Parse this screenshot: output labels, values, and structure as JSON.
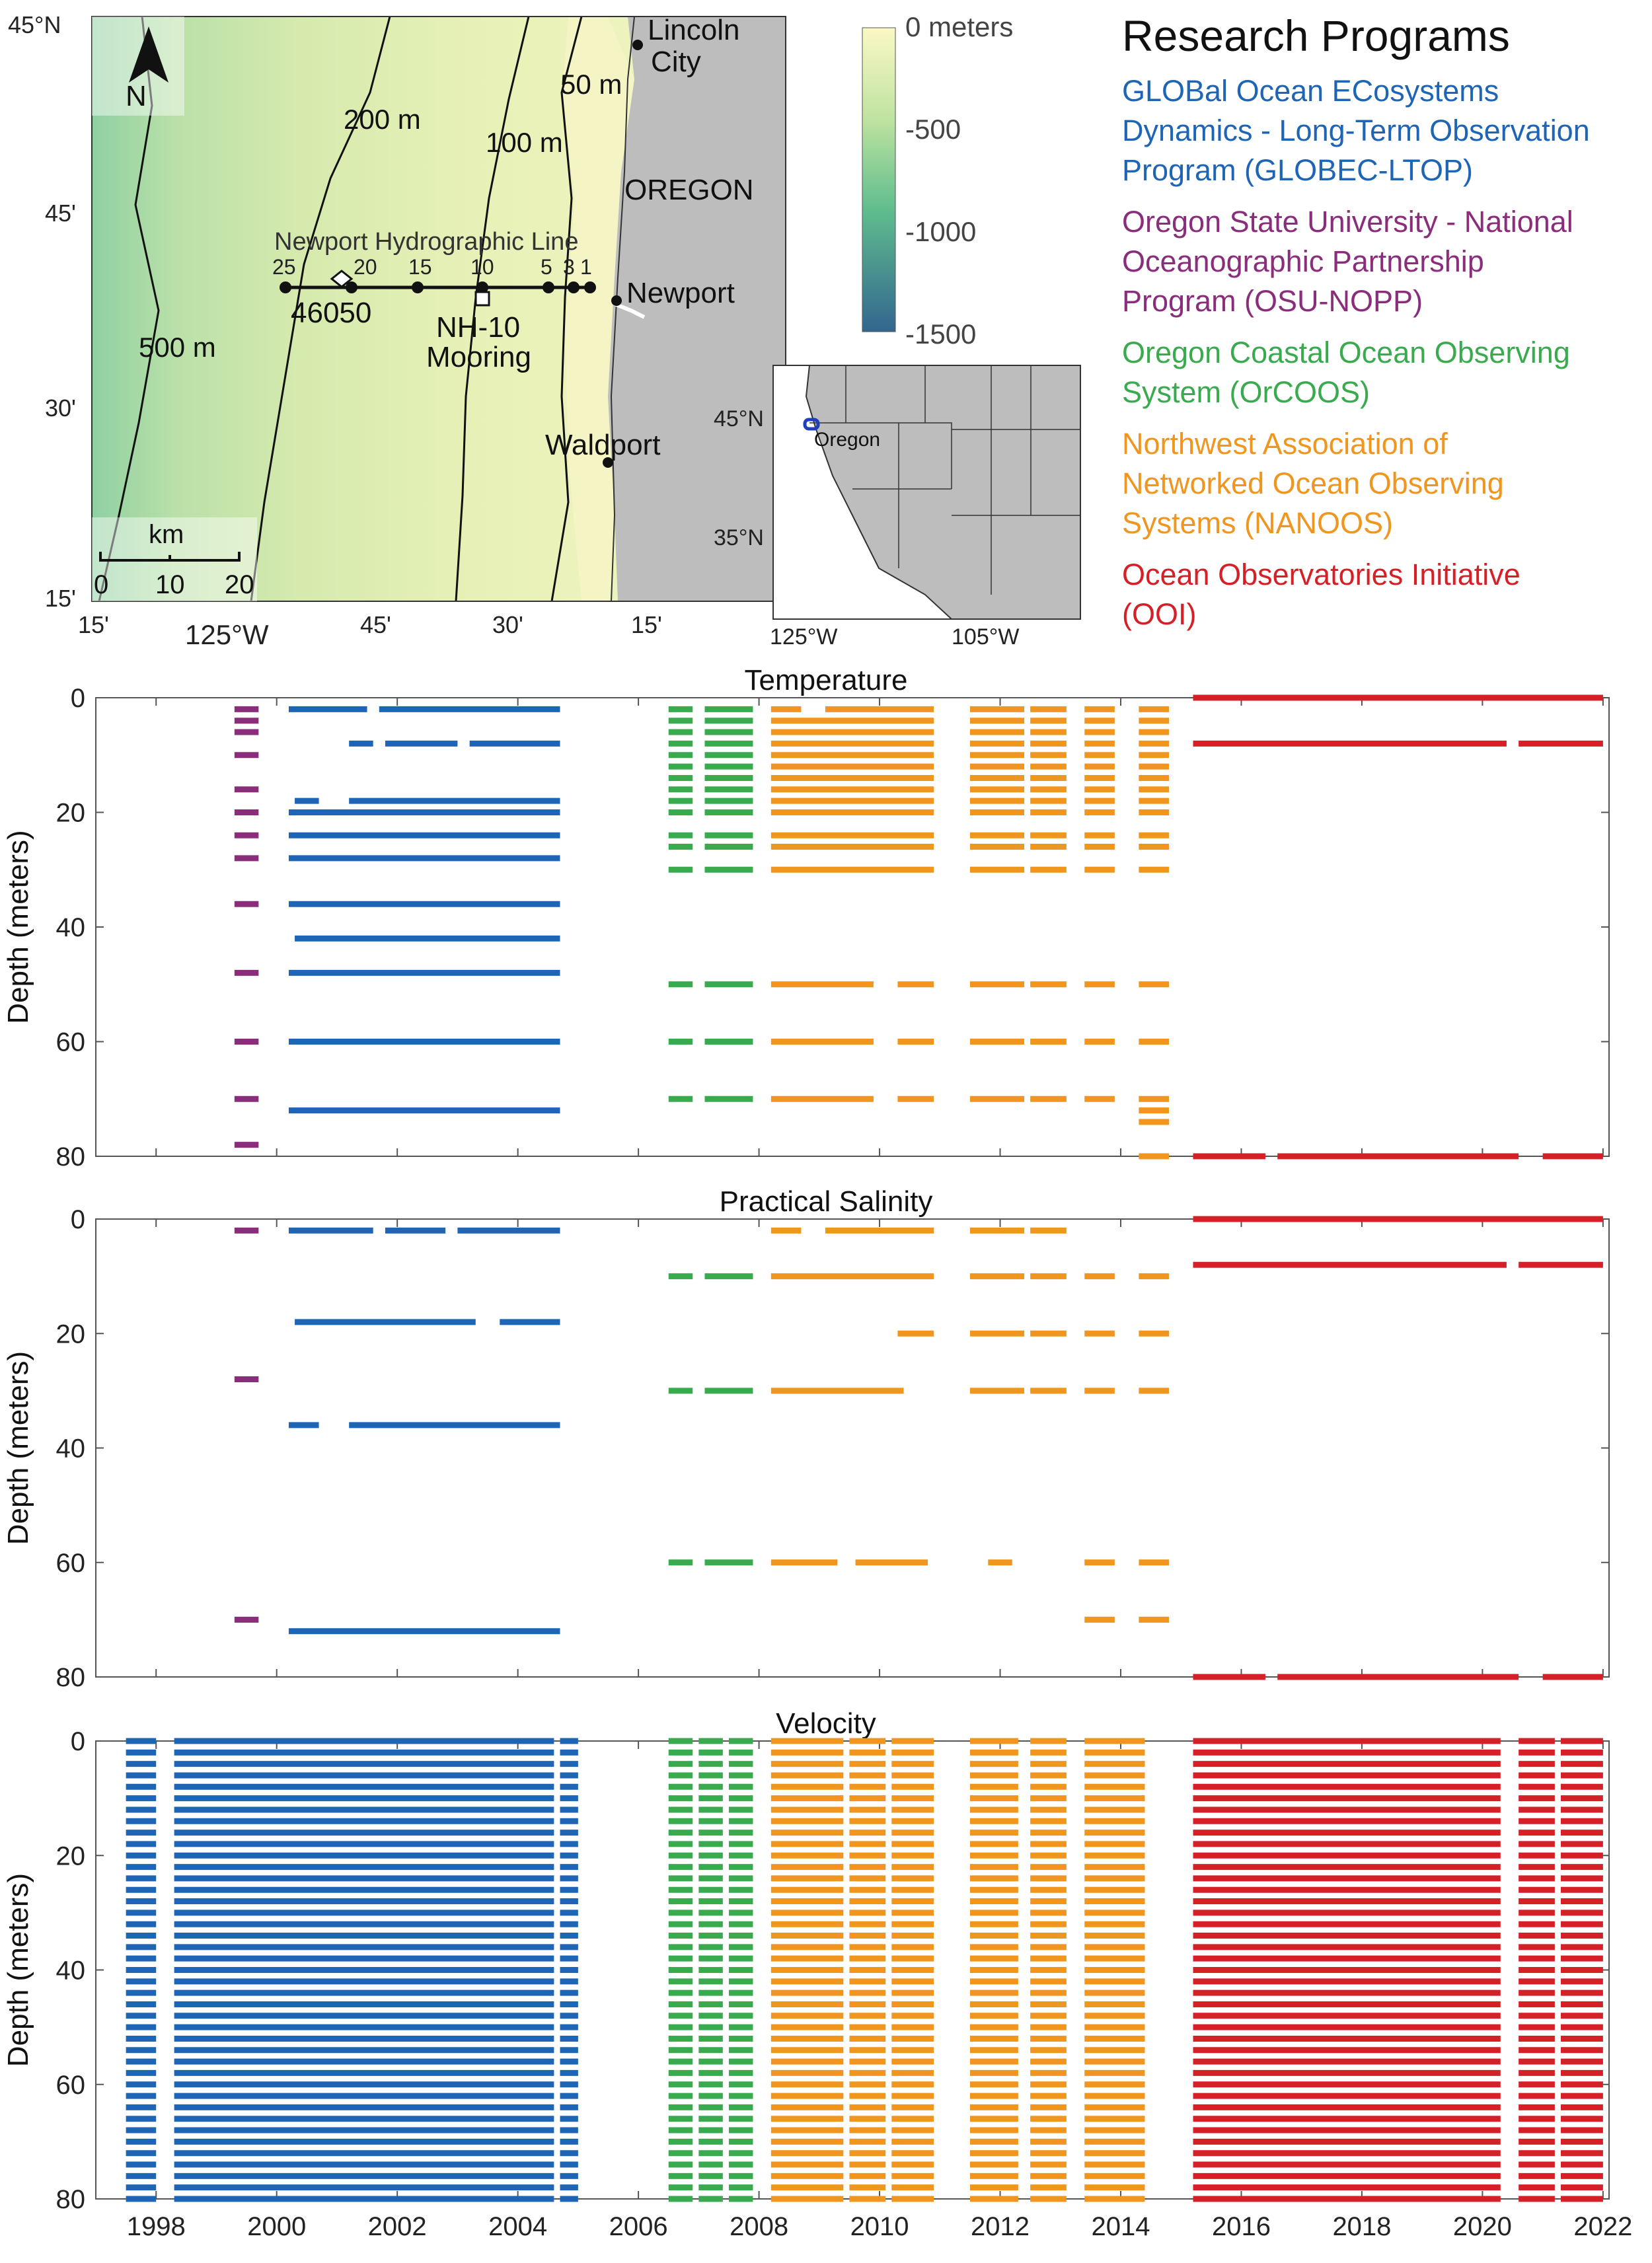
{
  "map": {
    "lat_labels": [
      "45°N",
      "45'",
      "30'",
      "15'"
    ],
    "lon_labels": [
      "15'",
      "125°W",
      "45'",
      "30'",
      "15'"
    ],
    "north_label": "N",
    "scale_title": "km",
    "scale_ticks": [
      "0",
      "10",
      "20"
    ],
    "contour_labels": [
      "200 m",
      "100 m",
      "50 m",
      "500 m"
    ],
    "places": [
      "Lincoln",
      "City",
      "OREGON",
      "Newport",
      "Waldport"
    ],
    "line_title": "Newport Hydrographic Line",
    "station_numbers": [
      "25",
      "20",
      "15",
      "10",
      "5",
      "3",
      "1"
    ],
    "buoy_label": "46050",
    "mooring_label": [
      "NH-10",
      "Mooring"
    ],
    "colorbar": {
      "labels": [
        "0 meters",
        "-500",
        "-1000",
        "-1500"
      ],
      "top_color": "#fbf8c6",
      "bottom_color": "#33668f"
    },
    "inset": {
      "lat_labels": [
        "45°N",
        "35°N"
      ],
      "lon_labels": [
        "125°W",
        "105°W"
      ],
      "region_label": "Oregon"
    },
    "colors": {
      "land": "#bdbdbd",
      "shelf": "#f5f4c5",
      "deep": "#a9d7a4"
    }
  },
  "legend": {
    "title": "Research Programs",
    "entries": [
      {
        "label": "GLOBal Ocean ECosystems\nDynamics - Long-Term Observation\nProgram (GLOBEC-LTOP)",
        "color": "#1f65b5"
      },
      {
        "label": "Oregon State University - National\nOceanographic Partnership\nProgram (OSU-NOPP)",
        "color": "#8a2e7b"
      },
      {
        "label": "Oregon Coastal Ocean Observing\nSystem (OrCOOS)",
        "color": "#3aaa4f"
      },
      {
        "label": "Northwest Association of\nNetworked Ocean Observing\nSystems (NANOOS)",
        "color": "#f0951e"
      },
      {
        "label": "Ocean Observatories Initiative\n(OOI)",
        "color": "#d62027"
      }
    ]
  },
  "chart_data": [
    {
      "type": "timeline",
      "title": "Temperature",
      "ylabel": "Depth (meters)",
      "xlim": [
        1997,
        2022.1
      ],
      "ylim": [
        0,
        80
      ],
      "y_ticks": [
        "0",
        "20",
        "40",
        "60",
        "80"
      ],
      "series": [
        {
          "name": "OSU-NOPP",
          "color": "#8a2e7b",
          "segments": [
            {
              "depths": [
                2,
                4,
                6,
                10,
                16,
                20,
                24,
                28,
                36,
                48,
                60,
                70,
                78
              ],
              "spans": [
                [
                  1999.3,
                  1999.7
                ]
              ]
            }
          ]
        },
        {
          "name": "GLOBEC-LTOP",
          "color": "#1f65b5",
          "segments": [
            {
              "depths": [
                2
              ],
              "spans": [
                [
                  2000.2,
                  2001.5
                ],
                [
                  2001.7,
                  2004.7
                ]
              ]
            },
            {
              "depths": [
                8
              ],
              "spans": [
                [
                  2001.2,
                  2001.6
                ],
                [
                  2001.8,
                  2003
                ],
                [
                  2003.2,
                  2004.7
                ]
              ]
            },
            {
              "depths": [
                18
              ],
              "spans": [
                [
                  2000.3,
                  2000.7
                ],
                [
                  2001.2,
                  2004.7
                ]
              ]
            },
            {
              "depths": [
                20,
                24,
                28,
                36,
                48,
                60,
                72
              ],
              "spans": [
                [
                  2000.2,
                  2004.7
                ]
              ]
            },
            {
              "depths": [
                42
              ],
              "spans": [
                [
                  2000.3,
                  2004.7
                ]
              ]
            }
          ]
        },
        {
          "name": "OrCOOS",
          "color": "#3aaa4f",
          "segments": [
            {
              "depths": [
                2,
                4,
                6,
                8,
                10,
                12,
                14,
                16,
                18,
                20,
                24,
                26,
                30
              ],
              "spans": [
                [
                  2006.5,
                  2006.9
                ],
                [
                  2007.1,
                  2007.9
                ]
              ]
            },
            {
              "depths": [
                50,
                60,
                70
              ],
              "spans": [
                [
                  2006.5,
                  2006.9
                ],
                [
                  2007.1,
                  2007.9
                ]
              ]
            }
          ]
        },
        {
          "name": "NANOOS",
          "color": "#f0951e",
          "segments": [
            {
              "depths": [
                2
              ],
              "spans": [
                [
                  2008.2,
                  2008.7
                ],
                [
                  2009.1,
                  2010.9
                ],
                [
                  2011.5,
                  2012.4
                ],
                [
                  2012.5,
                  2013.1
                ],
                [
                  2013.4,
                  2013.9
                ],
                [
                  2014.3,
                  2014.8
                ]
              ]
            },
            {
              "depths": [
                4,
                6,
                8,
                10,
                12,
                14,
                16,
                18,
                20,
                24,
                26,
                30
              ],
              "spans": [
                [
                  2008.2,
                  2010.9
                ],
                [
                  2011.5,
                  2012.4
                ],
                [
                  2012.5,
                  2013.1
                ],
                [
                  2013.4,
                  2013.9
                ],
                [
                  2014.3,
                  2014.8
                ]
              ]
            },
            {
              "depths": [
                50,
                60,
                70
              ],
              "spans": [
                [
                  2008.2,
                  2009.9
                ],
                [
                  2010.3,
                  2010.9
                ],
                [
                  2011.5,
                  2012.4
                ],
                [
                  2012.5,
                  2013.1
                ],
                [
                  2013.4,
                  2013.9
                ],
                [
                  2014.3,
                  2014.8
                ]
              ]
            },
            {
              "depths": [
                72,
                74,
                80
              ],
              "spans": [
                [
                  2014.3,
                  2014.8
                ]
              ]
            }
          ]
        },
        {
          "name": "OOI",
          "color": "#d62027",
          "segments": [
            {
              "depths": [
                0
              ],
              "spans": [
                [
                  2015.2,
                  2022
                ]
              ]
            },
            {
              "depths": [
                8
              ],
              "spans": [
                [
                  2015.2,
                  2020.4
                ],
                [
                  2020.6,
                  2022
                ]
              ]
            },
            {
              "depths": [
                80
              ],
              "spans": [
                [
                  2015.2,
                  2016.4
                ],
                [
                  2016.6,
                  2020.6
                ],
                [
                  2021,
                  2022
                ]
              ]
            }
          ]
        }
      ]
    },
    {
      "type": "timeline",
      "title": "Practical Salinity",
      "ylabel": "Depth (meters)",
      "xlim": [
        1997,
        2022.1
      ],
      "ylim": [
        0,
        80
      ],
      "y_ticks": [
        "0",
        "20",
        "40",
        "60",
        "80"
      ],
      "series": [
        {
          "name": "OSU-NOPP",
          "color": "#8a2e7b",
          "segments": [
            {
              "depths": [
                2,
                28,
                70
              ],
              "spans": [
                [
                  1999.3,
                  1999.7
                ]
              ]
            }
          ]
        },
        {
          "name": "GLOBEC-LTOP",
          "color": "#1f65b5",
          "segments": [
            {
              "depths": [
                2
              ],
              "spans": [
                [
                  2000.2,
                  2001.6
                ],
                [
                  2001.8,
                  2002.8
                ],
                [
                  2003,
                  2004.7
                ]
              ]
            },
            {
              "depths": [
                18
              ],
              "spans": [
                [
                  2000.3,
                  2003.3
                ],
                [
                  2003.7,
                  2004.7
                ]
              ]
            },
            {
              "depths": [
                36
              ],
              "spans": [
                [
                  2000.2,
                  2000.7
                ],
                [
                  2001.2,
                  2004.7
                ]
              ]
            },
            {
              "depths": [
                72
              ],
              "spans": [
                [
                  2000.2,
                  2004.7
                ]
              ]
            }
          ]
        },
        {
          "name": "OrCOOS",
          "color": "#3aaa4f",
          "segments": [
            {
              "depths": [
                10,
                30,
                60
              ],
              "spans": [
                [
                  2006.5,
                  2006.9
                ],
                [
                  2007.1,
                  2007.9
                ]
              ]
            }
          ]
        },
        {
          "name": "NANOOS",
          "color": "#f0951e",
          "segments": [
            {
              "depths": [
                2
              ],
              "spans": [
                [
                  2008.2,
                  2008.7
                ],
                [
                  2009.1,
                  2010.9
                ],
                [
                  2011.5,
                  2012.4
                ],
                [
                  2012.5,
                  2013.1
                ]
              ]
            },
            {
              "depths": [
                10
              ],
              "spans": [
                [
                  2008.2,
                  2010.9
                ],
                [
                  2011.5,
                  2012.4
                ],
                [
                  2012.5,
                  2013.1
                ],
                [
                  2013.4,
                  2013.9
                ],
                [
                  2014.3,
                  2014.8
                ]
              ]
            },
            {
              "depths": [
                20
              ],
              "spans": [
                [
                  2010.3,
                  2010.9
                ],
                [
                  2011.5,
                  2012.4
                ],
                [
                  2012.5,
                  2013.1
                ],
                [
                  2013.4,
                  2013.9
                ],
                [
                  2014.3,
                  2014.8
                ]
              ]
            },
            {
              "depths": [
                30
              ],
              "spans": [
                [
                  2008.2,
                  2010.4
                ],
                [
                  2011.5,
                  2012.4
                ],
                [
                  2012.5,
                  2013.1
                ],
                [
                  2013.4,
                  2013.9
                ],
                [
                  2014.3,
                  2014.8
                ]
              ]
            },
            {
              "depths": [
                60
              ],
              "spans": [
                [
                  2008.2,
                  2009.3
                ],
                [
                  2009.6,
                  2010.8
                ],
                [
                  2011.8,
                  2012.2
                ],
                [
                  2013.4,
                  2013.9
                ],
                [
                  2014.3,
                  2014.8
                ]
              ]
            },
            {
              "depths": [
                70
              ],
              "spans": [
                [
                  2013.4,
                  2013.9
                ],
                [
                  2014.3,
                  2014.8
                ]
              ]
            }
          ]
        },
        {
          "name": "OOI",
          "color": "#d62027",
          "segments": [
            {
              "depths": [
                0
              ],
              "spans": [
                [
                  2015.2,
                  2022
                ]
              ]
            },
            {
              "depths": [
                8
              ],
              "spans": [
                [
                  2015.2,
                  2020.4
                ],
                [
                  2020.6,
                  2022
                ]
              ]
            },
            {
              "depths": [
                80
              ],
              "spans": [
                [
                  2015.2,
                  2016.4
                ],
                [
                  2016.6,
                  2020.6
                ],
                [
                  2021,
                  2022
                ]
              ]
            }
          ]
        }
      ]
    },
    {
      "type": "timeline",
      "title": "Velocity",
      "ylabel": "Depth (meters)",
      "xlabel": "",
      "xlim": [
        1997,
        2022.1
      ],
      "ylim": [
        0,
        80
      ],
      "y_ticks": [
        "0",
        "20",
        "40",
        "60",
        "80"
      ],
      "x_ticks": [
        "1998",
        "2000",
        "2002",
        "2004",
        "2006",
        "2008",
        "2010",
        "2012",
        "2014",
        "2016",
        "2018",
        "2020",
        "2022"
      ],
      "series": [
        {
          "name": "GLOBEC-LTOP",
          "color": "#1f65b5",
          "segments": [
            {
              "depth_range": [
                0,
                80
              ],
              "depth_step": 2,
              "spans": [
                [
                  1997.5,
                  1998
                ],
                [
                  1998.3,
                  2004.6
                ],
                [
                  2004.7,
                  2005
                ]
              ]
            }
          ]
        },
        {
          "name": "OrCOOS",
          "color": "#3aaa4f",
          "segments": [
            {
              "depth_range": [
                0,
                80
              ],
              "depth_step": 2,
              "spans": [
                [
                  2006.5,
                  2006.9
                ],
                [
                  2007,
                  2007.4
                ],
                [
                  2007.5,
                  2007.9
                ]
              ]
            }
          ]
        },
        {
          "name": "NANOOS",
          "color": "#f0951e",
          "segments": [
            {
              "depth_range": [
                0,
                80
              ],
              "depth_step": 2,
              "spans": [
                [
                  2008.2,
                  2009.4
                ],
                [
                  2009.5,
                  2010.1
                ],
                [
                  2010.2,
                  2010.9
                ],
                [
                  2011.5,
                  2012.3
                ],
                [
                  2012.5,
                  2013.1
                ],
                [
                  2013.4,
                  2014.4
                ]
              ]
            }
          ]
        },
        {
          "name": "OOI",
          "color": "#d62027",
          "segments": [
            {
              "depth_range": [
                0,
                80
              ],
              "depth_step": 2,
              "spans": [
                [
                  2015.2,
                  2020.3
                ],
                [
                  2020.6,
                  2021.2
                ],
                [
                  2021.3,
                  2022
                ]
              ]
            }
          ]
        }
      ]
    }
  ]
}
